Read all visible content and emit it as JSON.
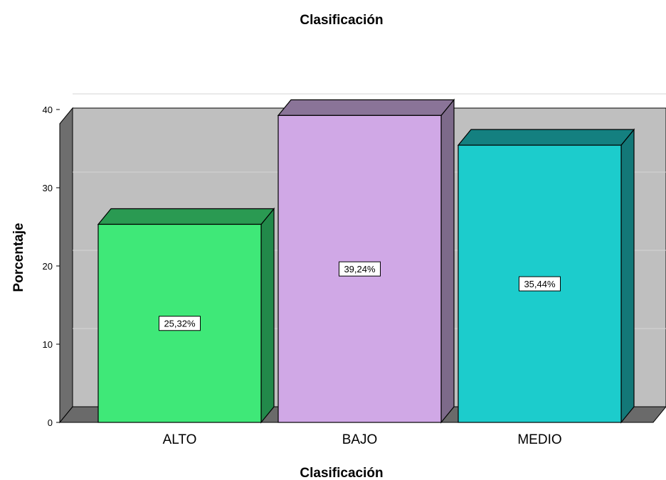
{
  "chart_data": {
    "type": "bar",
    "title": "Clasificación",
    "xlabel": "Clasificación",
    "ylabel": "Porcentaje",
    "categories": [
      "ALTO",
      "BAJO",
      "MEDIO"
    ],
    "values": [
      25.32,
      39.24,
      35.44
    ],
    "data_labels": [
      "25,32%",
      "39,24%",
      "35,44%"
    ],
    "ylim": [
      0,
      40
    ],
    "yticks": [
      0,
      10,
      20,
      30,
      40
    ],
    "grid": true,
    "style_3d": true,
    "colors": {
      "bars": [
        "#3fe878",
        "#d0a8e6",
        "#1ccccc"
      ],
      "bar_sides": [
        "#22894a",
        "#7d6a8a",
        "#137878"
      ],
      "bar_tops": [
        "#2a9a52",
        "#8a7498",
        "#148080"
      ],
      "back_wall": "#bfbfbf",
      "side_wall": "#6e6e6e",
      "floor": "#6a6a6a",
      "gridline": "#d6d6d6",
      "outline": "#000000"
    }
  }
}
